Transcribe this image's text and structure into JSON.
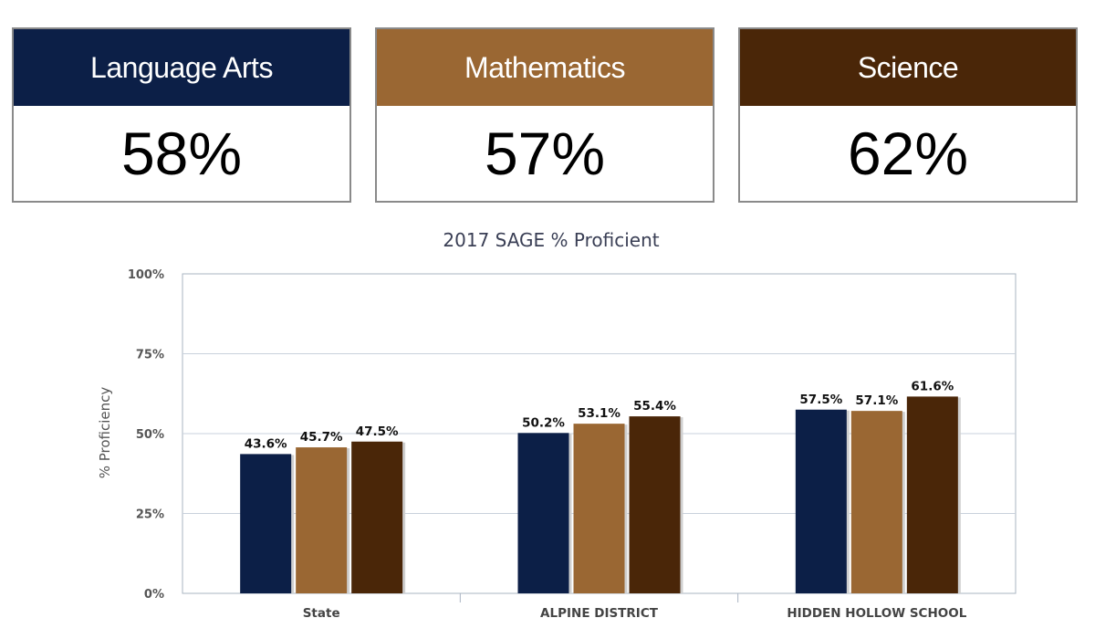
{
  "colors": {
    "language_arts": "#0c1f47",
    "mathematics": "#9a6733",
    "science": "#4a2608"
  },
  "cards": [
    {
      "label": "Language Arts",
      "value": "58%"
    },
    {
      "label": "Mathematics",
      "value": "57%"
    },
    {
      "label": "Science",
      "value": "62%"
    }
  ],
  "chart_data": {
    "type": "bar",
    "title": "2017 SAGE % Proficient",
    "xlabel": "",
    "ylabel": "% Proficiency",
    "ylim": [
      0,
      100
    ],
    "yticks": [
      "0%",
      "25%",
      "50%",
      "75%",
      "100%"
    ],
    "categories": [
      "State",
      "ALPINE DISTRICT",
      "HIDDEN HOLLOW SCHOOL"
    ],
    "series": [
      {
        "values": [
          43.6,
          50.2,
          57.5
        ],
        "labels": [
          "43.6%",
          "50.2%",
          "57.5%"
        ]
      },
      {
        "values": [
          45.7,
          53.1,
          57.1
        ],
        "labels": [
          "45.7%",
          "53.1%",
          "57.1%"
        ]
      },
      {
        "values": [
          47.5,
          55.4,
          61.6
        ],
        "labels": [
          "47.5%",
          "55.4%",
          "61.6%"
        ]
      }
    ],
    "grid": true,
    "legend": "none"
  }
}
